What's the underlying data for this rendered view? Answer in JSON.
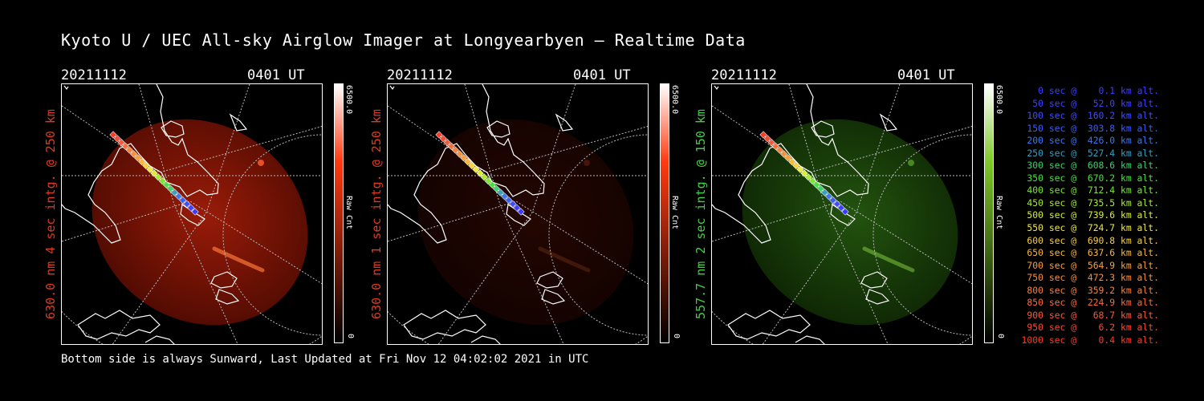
{
  "header": {
    "title": "Kyoto U / UEC All-sky Airglow Imager at Longyearbyen — Realtime Data"
  },
  "footer": {
    "text": "Bottom side is always Sunward, Last Updated at Fri Nov 12 04:02:02 2021 in UTC"
  },
  "panels": [
    {
      "date": "20211112",
      "time": "0401 UT",
      "ylabel": "630.0 nm 4 sec intg. @ 250 km",
      "label_color": "#e03a1e",
      "cbar_max": "6500.0",
      "cbar_min": "0",
      "cbar_unit": "Raw Cnt",
      "image_intensity": 0.85
    },
    {
      "date": "20211112",
      "time": "0401 UT",
      "ylabel": "630.0 nm 1 sec intg. @ 250 km",
      "label_color": "#e03a1e",
      "cbar_max": "6500.0",
      "cbar_min": "0",
      "cbar_unit": "Raw Cnt",
      "image_intensity": 0.2
    },
    {
      "date": "20211112",
      "time": "0401 UT",
      "ylabel": "557.7 nm 2 sec intg. @ 150 km",
      "label_color": "#44d044",
      "cbar_max": "6500.0",
      "cbar_min": "0",
      "cbar_unit": "Raw Cnt",
      "image_intensity": 0.6
    }
  ],
  "colors": {
    "red_scale_top": "#ff3a10",
    "green_scale_top": "#7ec828",
    "background": "#000000"
  },
  "track_legend": [
    {
      "text": "0 sec @    0.1 km alt.",
      "color": "#3c3cff"
    },
    {
      "text": "50 sec @   52.0 km alt.",
      "color": "#4040ff"
    },
    {
      "text": "100 sec @  160.2 km alt.",
      "color": "#3f4cff"
    },
    {
      "text": "150 sec @  303.8 km alt.",
      "color": "#3e5cff"
    },
    {
      "text": "200 sec @  426.0 km alt.",
      "color": "#3a78f0"
    },
    {
      "text": "250 sec @  527.4 km alt.",
      "color": "#35a0c0"
    },
    {
      "text": "300 sec @  608.6 km alt.",
      "color": "#3cd070"
    },
    {
      "text": "350 sec @  670.2 km alt.",
      "color": "#48e040"
    },
    {
      "text": "400 sec @  712.4 km alt.",
      "color": "#78e830"
    },
    {
      "text": "450 sec @  735.5 km alt.",
      "color": "#a8ec30"
    },
    {
      "text": "500 sec @  739.6 km alt.",
      "color": "#d8f030"
    },
    {
      "text": "550 sec @  724.7 km alt.",
      "color": "#f0e840"
    },
    {
      "text": "600 sec @  690.8 km alt.",
      "color": "#f8d038"
    },
    {
      "text": "650 sec @  637.6 km alt.",
      "color": "#f8b838"
    },
    {
      "text": "700 sec @  564.9 km alt.",
      "color": "#f8a038"
    },
    {
      "text": "750 sec @  472.3 km alt.",
      "color": "#f89038"
    },
    {
      "text": "800 sec @  359.2 km alt.",
      "color": "#f88038"
    },
    {
      "text": "850 sec @  224.9 km alt.",
      "color": "#f86c38"
    },
    {
      "text": "900 sec @   68.7 km alt.",
      "color": "#f85a38"
    },
    {
      "text": "950 sec @    6.2 km alt.",
      "color": "#f84a30"
    },
    {
      "text": "1000 sec @    0.4 km alt.",
      "color": "#f83c28"
    }
  ]
}
